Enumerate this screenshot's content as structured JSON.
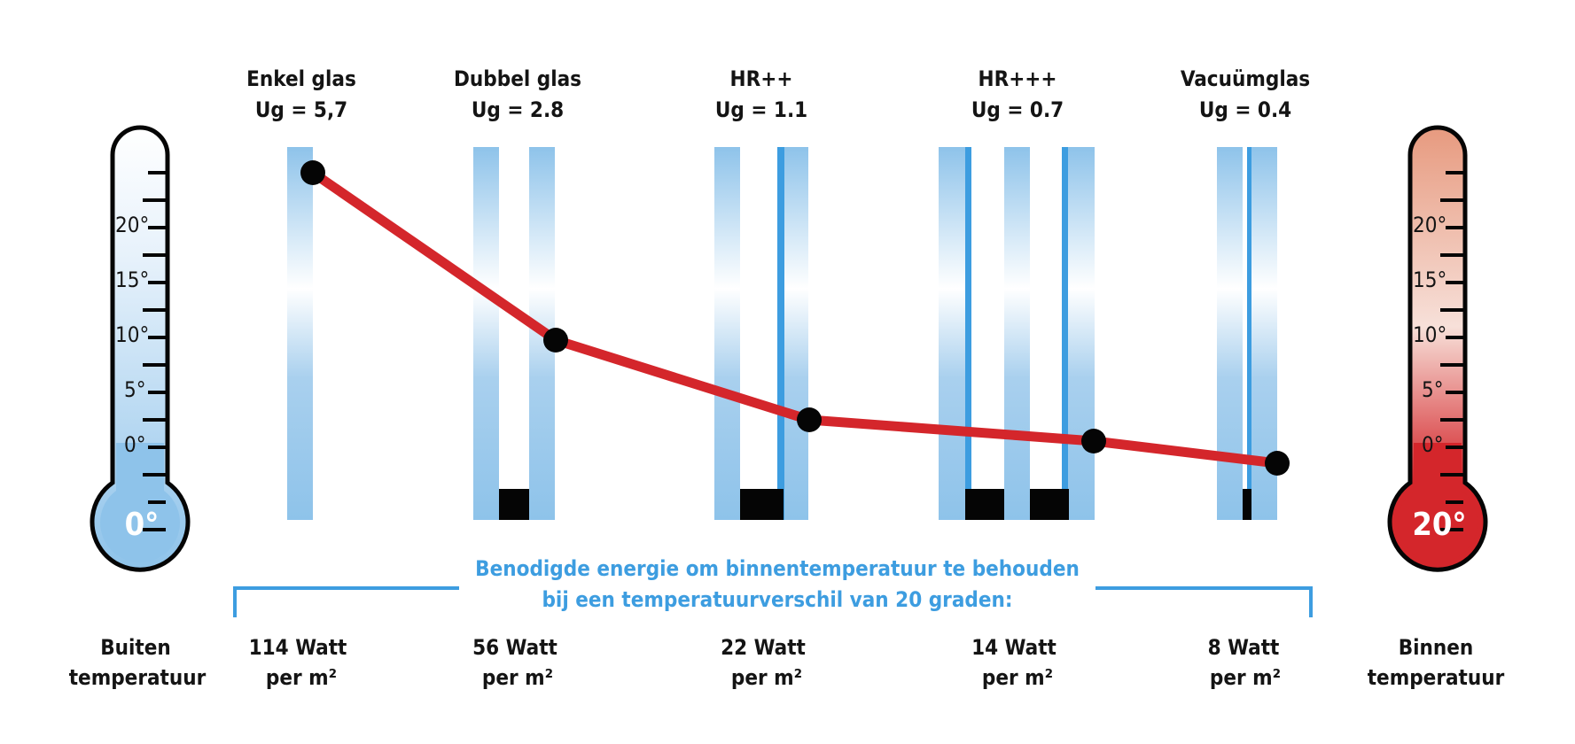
{
  "colors": {
    "glass": "#8ec3ea",
    "glass_line": "#3d9de0",
    "line": "#d4262b",
    "text": "#141414",
    "accent_blue": "#3d9de0",
    "cold": "#8ec3ea",
    "warm": "#d4262b"
  },
  "thermometers": {
    "left": {
      "reading": "0°",
      "ticks": [
        "20°",
        "15°",
        "10°",
        "5°",
        "0°"
      ],
      "caption_line1": "Buiten",
      "caption_line2": "temperatuur"
    },
    "right": {
      "reading": "20°",
      "ticks": [
        "20°",
        "15°",
        "10°",
        "5°",
        "0°"
      ],
      "caption_line1": "Binnen",
      "caption_line2": "temperatuur"
    }
  },
  "note": {
    "line1": "Benodigde energie om binnentemperatuur te behouden",
    "line2": "bij een temperatuurverschil van 20 graden:"
  },
  "chart_data": {
    "type": "line",
    "categories": [
      "Enkel glas",
      "Dubbel glas",
      "HR++",
      "HR+++",
      "Vacuümglas"
    ],
    "series": [
      {
        "values": [
          114,
          56,
          22,
          14,
          8
        ]
      }
    ],
    "glazing": [
      {
        "name": "Enkel glas",
        "ug": "Ug = 5,7",
        "energy_line1": "114 Watt",
        "energy_line2": "per m²",
        "watt": 114
      },
      {
        "name": "Dubbel glas",
        "ug": "Ug = 2.8",
        "energy_line1": "56 Watt",
        "energy_line2": "per m²",
        "watt": 56
      },
      {
        "name": "HR++",
        "ug": "Ug = 1.1",
        "energy_line1": "22 Watt",
        "energy_line2": "per m²",
        "watt": 22
      },
      {
        "name": "HR+++",
        "ug": "Ug = 0.7",
        "energy_line1": "14 Watt",
        "energy_line2": "per m²",
        "watt": 14
      },
      {
        "name": "Vacuümglas",
        "ug": "Ug = 0.4",
        "energy_line1": "8 Watt",
        "energy_line2": "per m²",
        "watt": 8
      }
    ]
  }
}
